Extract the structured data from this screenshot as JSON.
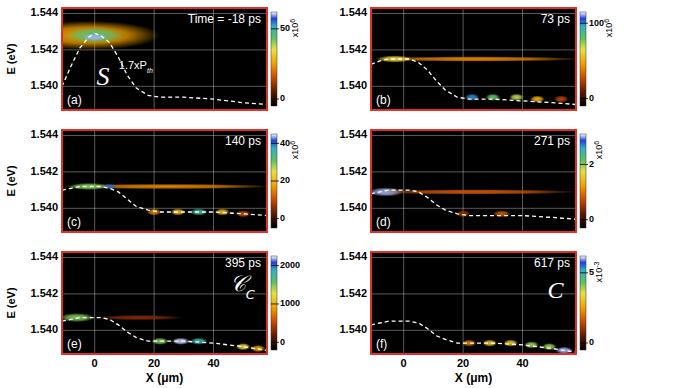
{
  "chart_data": [
    {
      "type": "heatmap",
      "title": "Time = -18 ps",
      "panel": "(a)",
      "y_label": "E (eV)",
      "xlim": [
        -11,
        58
      ],
      "xticks": [
        0,
        20,
        40
      ],
      "ylim": [
        1.5387,
        1.5443
      ],
      "yticks": [
        {
          "value": 1.54,
          "label": "1.540"
        },
        {
          "value": 1.542,
          "label": "1.542"
        },
        {
          "value": 1.544,
          "label": "1.544"
        }
      ],
      "grid": true,
      "tick_labels": "y",
      "spots": [
        {
          "x": -2,
          "e": 1.5428,
          "dx": 48,
          "de": 0.0016,
          "value": 25
        },
        {
          "x": 0,
          "e": 1.5428,
          "dx": 20,
          "de": 0.0009,
          "value": 45
        },
        {
          "x": 0,
          "e": 1.5427,
          "dx": 8,
          "de": 0.0004,
          "value": 60
        }
      ],
      "potential": {
        "x": [
          -11,
          -8,
          -5,
          -2,
          0,
          2,
          5,
          8,
          11,
          14,
          18,
          22,
          30,
          40,
          50,
          58
        ],
        "e": [
          1.54,
          1.5411,
          1.5421,
          1.5427,
          1.5429,
          1.5428,
          1.5424,
          1.5416,
          1.5406,
          1.5399,
          1.5395,
          1.5394,
          1.5394,
          1.5393,
          1.5391,
          1.539
        ]
      },
      "colorbar": {
        "range": [
          -5,
          62
        ],
        "ticks": [
          0,
          50
        ],
        "scale_label": {
          "base": "x10",
          "exp": "6"
        }
      },
      "annotations": [
        {
          "text": "S"
        },
        {
          "text": "1.7xP",
          "sub": "th"
        }
      ]
    },
    {
      "type": "heatmap",
      "title": "73 ps",
      "panel": "(b)",
      "xlim": [
        -11,
        58
      ],
      "xticks": [
        0,
        20,
        40
      ],
      "ylim": [
        1.5387,
        1.5443
      ],
      "yticks": [
        {
          "value": 1.54,
          "label": "1.540"
        },
        {
          "value": 1.542,
          "label": "1.542"
        },
        {
          "value": 1.544,
          "label": "1.544"
        }
      ],
      "grid": true,
      "tick_labels": "y",
      "spots": [
        {
          "x": 24,
          "e": 1.5415,
          "dx": 72,
          "de": 0.0003,
          "value": 40
        },
        {
          "x": -3,
          "e": 1.5415,
          "dx": 12,
          "de": 0.0004,
          "value": 60
        },
        {
          "x": 23,
          "e": 1.5394,
          "dx": 5,
          "de": 0.0004,
          "value": 100
        },
        {
          "x": 30,
          "e": 1.5394,
          "dx": 5,
          "de": 0.0004,
          "value": 80
        },
        {
          "x": 38,
          "e": 1.5394,
          "dx": 5,
          "de": 0.0004,
          "value": 70
        },
        {
          "x": 45,
          "e": 1.5393,
          "dx": 5,
          "de": 0.0004,
          "value": 50
        },
        {
          "x": 53,
          "e": 1.5393,
          "dx": 5,
          "de": 0.0004,
          "value": 25
        }
      ],
      "potential": {
        "x": [
          -11,
          -8,
          -5,
          -2,
          0,
          2,
          5,
          8,
          11,
          14,
          18,
          22,
          30,
          40,
          50,
          58
        ],
        "e": [
          1.5412,
          1.5414,
          1.5415,
          1.5415,
          1.5415,
          1.5415,
          1.5413,
          1.5409,
          1.5403,
          1.5398,
          1.5394,
          1.5393,
          1.5393,
          1.5392,
          1.5391,
          1.539
        ]
      },
      "colorbar": {
        "range": [
          -10,
          115
        ],
        "ticks": [
          0,
          100
        ],
        "scale_label": {
          "base": "x10",
          "exp": "6"
        }
      },
      "annotations": []
    },
    {
      "type": "heatmap",
      "title": "140 ps",
      "panel": "(c)",
      "y_label": "E (eV)",
      "xlim": [
        -11,
        58
      ],
      "xticks": [
        0,
        20,
        40
      ],
      "ylim": [
        1.5387,
        1.5443
      ],
      "yticks": [
        {
          "value": 1.54,
          "label": "1.540"
        },
        {
          "value": 1.542,
          "label": "1.542"
        },
        {
          "value": 1.544,
          "label": "1.544"
        }
      ],
      "grid": true,
      "tick_labels": "y",
      "spots": [
        {
          "x": 24,
          "e": 1.5412,
          "dx": 72,
          "de": 0.0003,
          "value": 15
        },
        {
          "x": -2,
          "e": 1.5412,
          "dx": 14,
          "de": 0.0004,
          "value": 30
        },
        {
          "x": 5,
          "e": 1.5412,
          "dx": 5,
          "de": 0.0003,
          "value": 40
        },
        {
          "x": 20,
          "e": 1.5398,
          "dx": 5,
          "de": 0.0004,
          "value": 15
        },
        {
          "x": 28,
          "e": 1.5398,
          "dx": 5,
          "de": 0.0004,
          "value": 20
        },
        {
          "x": 35,
          "e": 1.5398,
          "dx": 6,
          "de": 0.0004,
          "value": 35
        },
        {
          "x": 43,
          "e": 1.5398,
          "dx": 5,
          "de": 0.0004,
          "value": 20
        },
        {
          "x": 50,
          "e": 1.5397,
          "dx": 5,
          "de": 0.0004,
          "value": 10
        }
      ],
      "potential": {
        "x": [
          -11,
          -8,
          -5,
          -2,
          0,
          2,
          5,
          8,
          11,
          14,
          18,
          22,
          30,
          40,
          50,
          58
        ],
        "e": [
          1.541,
          1.5411,
          1.5412,
          1.5412,
          1.5412,
          1.5412,
          1.5411,
          1.5409,
          1.5405,
          1.5401,
          1.5399,
          1.5398,
          1.5398,
          1.5398,
          1.5397,
          1.5396
        ]
      },
      "colorbar": {
        "range": [
          -5,
          45
        ],
        "ticks": [
          0,
          20,
          40
        ],
        "scale_label": {
          "base": "x10",
          "exp": "6"
        }
      },
      "annotations": []
    },
    {
      "type": "heatmap",
      "title": "271 ps",
      "panel": "(d)",
      "xlim": [
        -11,
        58
      ],
      "xticks": [
        0,
        20,
        40
      ],
      "ylim": [
        1.5387,
        1.5443
      ],
      "yticks": [
        {
          "value": 1.54,
          "label": "1.540"
        },
        {
          "value": 1.542,
          "label": "1.542"
        },
        {
          "value": 1.544,
          "label": "1.544"
        }
      ],
      "grid": true,
      "tick_labels": "y",
      "spots": [
        {
          "x": -6,
          "e": 1.5409,
          "dx": 12,
          "de": 0.0005,
          "value": 3
        },
        {
          "x": 24,
          "e": 1.5409,
          "dx": 70,
          "de": 0.0003,
          "value": 0.8
        },
        {
          "x": 20,
          "e": 1.5397,
          "dx": 5,
          "de": 0.0004,
          "value": 0.5
        },
        {
          "x": 33,
          "e": 1.5397,
          "dx": 6,
          "de": 0.0004,
          "value": 0.8
        }
      ],
      "potential": {
        "x": [
          -11,
          -8,
          -5,
          -2,
          0,
          2,
          5,
          8,
          11,
          14,
          18,
          22,
          30,
          40,
          50,
          58
        ],
        "e": [
          1.5408,
          1.5409,
          1.541,
          1.541,
          1.541,
          1.541,
          1.5409,
          1.5406,
          1.5402,
          1.5399,
          1.5397,
          1.5396,
          1.5396,
          1.5396,
          1.5395,
          1.5394
        ]
      },
      "colorbar": {
        "range": [
          -0.3,
          3.1
        ],
        "ticks": [
          0,
          2
        ],
        "scale_label": {
          "base": "x10",
          "exp": "6"
        }
      },
      "annotations": []
    },
    {
      "type": "heatmap",
      "title": "395 ps",
      "panel": "(e)",
      "y_label": "E (eV)",
      "x_label": "X (μm)",
      "xlim": [
        -11,
        58
      ],
      "xticks": [
        0,
        20,
        40
      ],
      "ylim": [
        1.5387,
        1.5443
      ],
      "yticks": [
        {
          "value": 1.54,
          "label": "1.540"
        },
        {
          "value": 1.542,
          "label": "1.542"
        },
        {
          "value": 1.544,
          "label": "1.544"
        }
      ],
      "grid": true,
      "tick_labels": true,
      "spots": [
        {
          "x": -6,
          "e": 1.5407,
          "dx": 12,
          "de": 0.0005,
          "value": 1500
        },
        {
          "x": 15,
          "e": 1.5407,
          "dx": 30,
          "de": 0.0003,
          "value": 300
        },
        {
          "x": 22,
          "e": 1.5394,
          "dx": 6,
          "de": 0.0004,
          "value": 1500
        },
        {
          "x": 29,
          "e": 1.5394,
          "dx": 6,
          "de": 0.0004,
          "value": 2200
        },
        {
          "x": 35,
          "e": 1.5394,
          "dx": 6,
          "de": 0.0004,
          "value": 1800
        },
        {
          "x": 50,
          "e": 1.5391,
          "dx": 5,
          "de": 0.0004,
          "value": 1200
        },
        {
          "x": 55,
          "e": 1.539,
          "dx": 5,
          "de": 0.0004,
          "value": 900
        }
      ],
      "potential": {
        "x": [
          -11,
          -8,
          -5,
          -2,
          0,
          2,
          5,
          8,
          11,
          14,
          18,
          22,
          30,
          40,
          50,
          58
        ],
        "e": [
          1.5405,
          1.5406,
          1.5407,
          1.5407,
          1.5407,
          1.5407,
          1.5406,
          1.5403,
          1.5399,
          1.5396,
          1.5394,
          1.5394,
          1.5394,
          1.5393,
          1.5391,
          1.5389
        ]
      },
      "colorbar": {
        "range": [
          -200,
          2250
        ],
        "ticks": [
          0,
          1000,
          2000
        ]
      },
      "annotations": [
        {
          "text": "𝒞",
          "sub": "C"
        }
      ]
    },
    {
      "type": "heatmap",
      "title": "617 ps",
      "panel": "(f)",
      "x_label": "X (μm)",
      "xlim": [
        -11,
        58
      ],
      "xticks": [
        0,
        20,
        40
      ],
      "ylim": [
        1.5387,
        1.5443
      ],
      "yticks": [
        {
          "value": 1.54,
          "label": "1.540"
        },
        {
          "value": 1.542,
          "label": "1.542"
        },
        {
          "value": 1.544,
          "label": "1.544"
        }
      ],
      "grid": true,
      "tick_labels": true,
      "spots": [
        {
          "x": 22,
          "e": 1.5393,
          "dx": 5,
          "de": 0.0004,
          "value": 2
        },
        {
          "x": 29,
          "e": 1.5393,
          "dx": 5,
          "de": 0.0004,
          "value": 3
        },
        {
          "x": 36,
          "e": 1.5393,
          "dx": 5,
          "de": 0.0004,
          "value": 3
        },
        {
          "x": 43,
          "e": 1.5392,
          "dx": 5,
          "de": 0.0004,
          "value": 4
        },
        {
          "x": 49,
          "e": 1.5391,
          "dx": 5,
          "de": 0.0004,
          "value": 4
        },
        {
          "x": 54,
          "e": 1.5389,
          "dx": 6,
          "de": 0.0004,
          "value": 6
        }
      ],
      "potential": {
        "x": [
          -11,
          -8,
          -5,
          -2,
          0,
          2,
          5,
          8,
          11,
          14,
          18,
          22,
          30,
          40,
          50,
          58
        ],
        "e": [
          1.5403,
          1.5404,
          1.5405,
          1.5405,
          1.5405,
          1.5405,
          1.5404,
          1.5401,
          1.5397,
          1.5395,
          1.5393,
          1.5393,
          1.5393,
          1.5392,
          1.539,
          1.5388
        ]
      },
      "colorbar": {
        "range": [
          -0.5,
          6.2
        ],
        "ticks": [
          0,
          5
        ],
        "scale_label": {
          "base": "x10",
          "exp": "-3"
        }
      },
      "annotations": [
        {
          "text": "C"
        }
      ]
    }
  ]
}
